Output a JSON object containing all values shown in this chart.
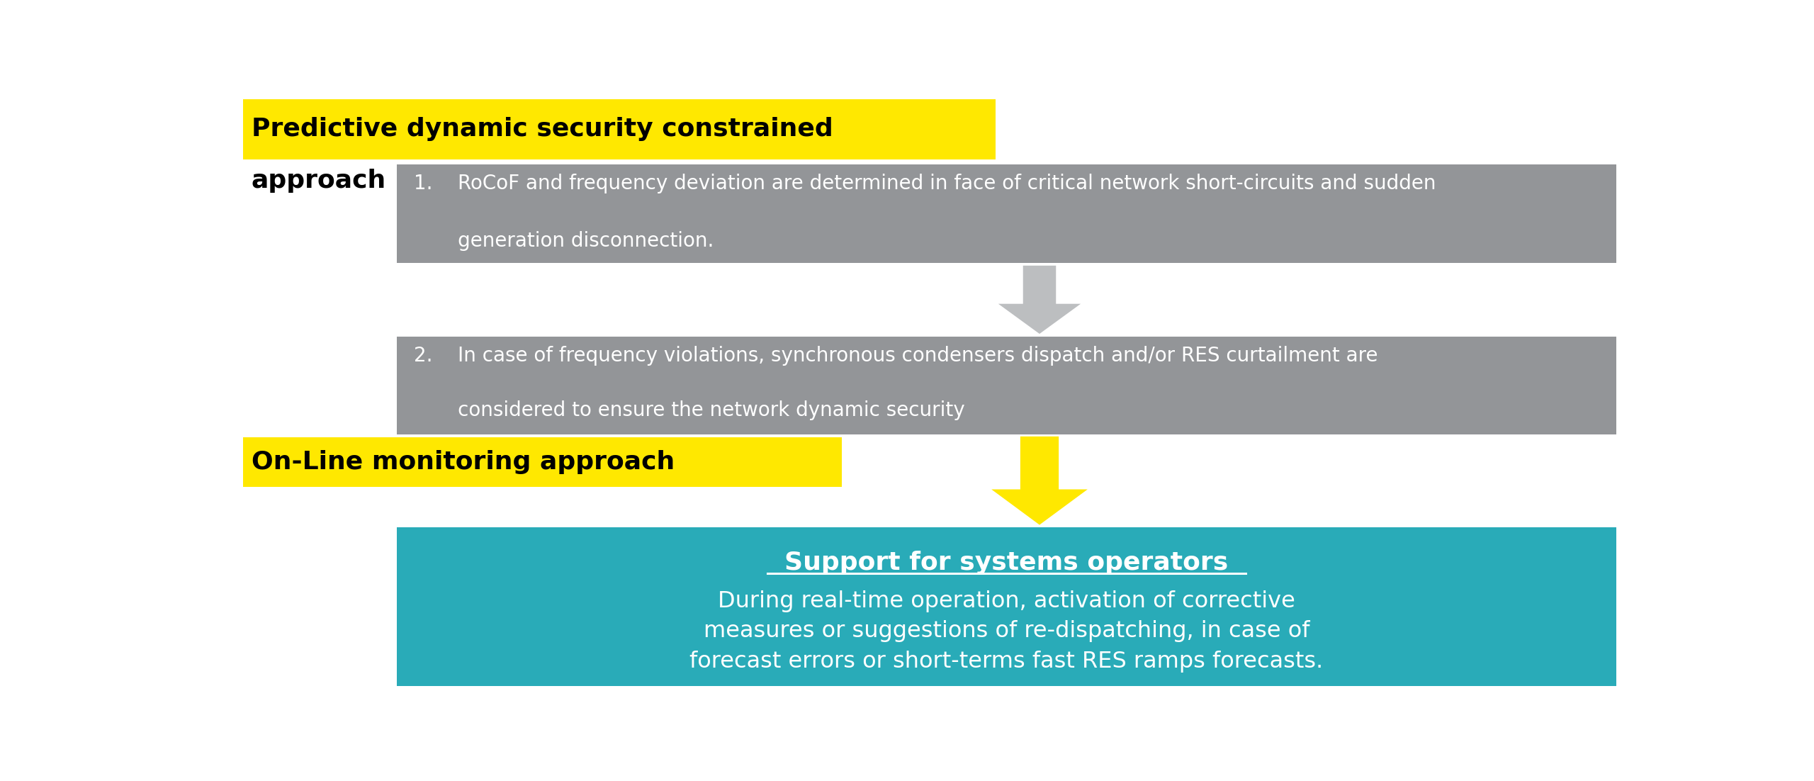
{
  "background_color": "#ffffff",
  "yellow_color": "#FFE800",
  "gray_box_color": "#939598",
  "teal_box_color": "#29ABB8",
  "gray_arrow_color": "#BCBEC0",
  "yellow_arrow_color": "#FFE800",
  "label1_line1": "Predictive dynamic security constrained",
  "label1_line2": "approach",
  "label2": "On-Line monitoring approach",
  "box1_text_line1": "1.    RoCoF and frequency deviation are determined in face of critical network short-circuits and sudden",
  "box1_text_line2": "       generation disconnection.",
  "box2_text_line1": "2.    In case of frequency violations, synchronous condensers dispatch and/or RES curtailment are",
  "box2_text_line2": "       considered to ensure the network dynamic security",
  "teal_title": "Support for systems operators",
  "teal_body_line1": "During real-time operation, activation of corrective",
  "teal_body_line2": "measures or suggestions of re-dispatching, in case of",
  "teal_body_line3": "forecast errors or short-terms fast RES ramps forecasts."
}
